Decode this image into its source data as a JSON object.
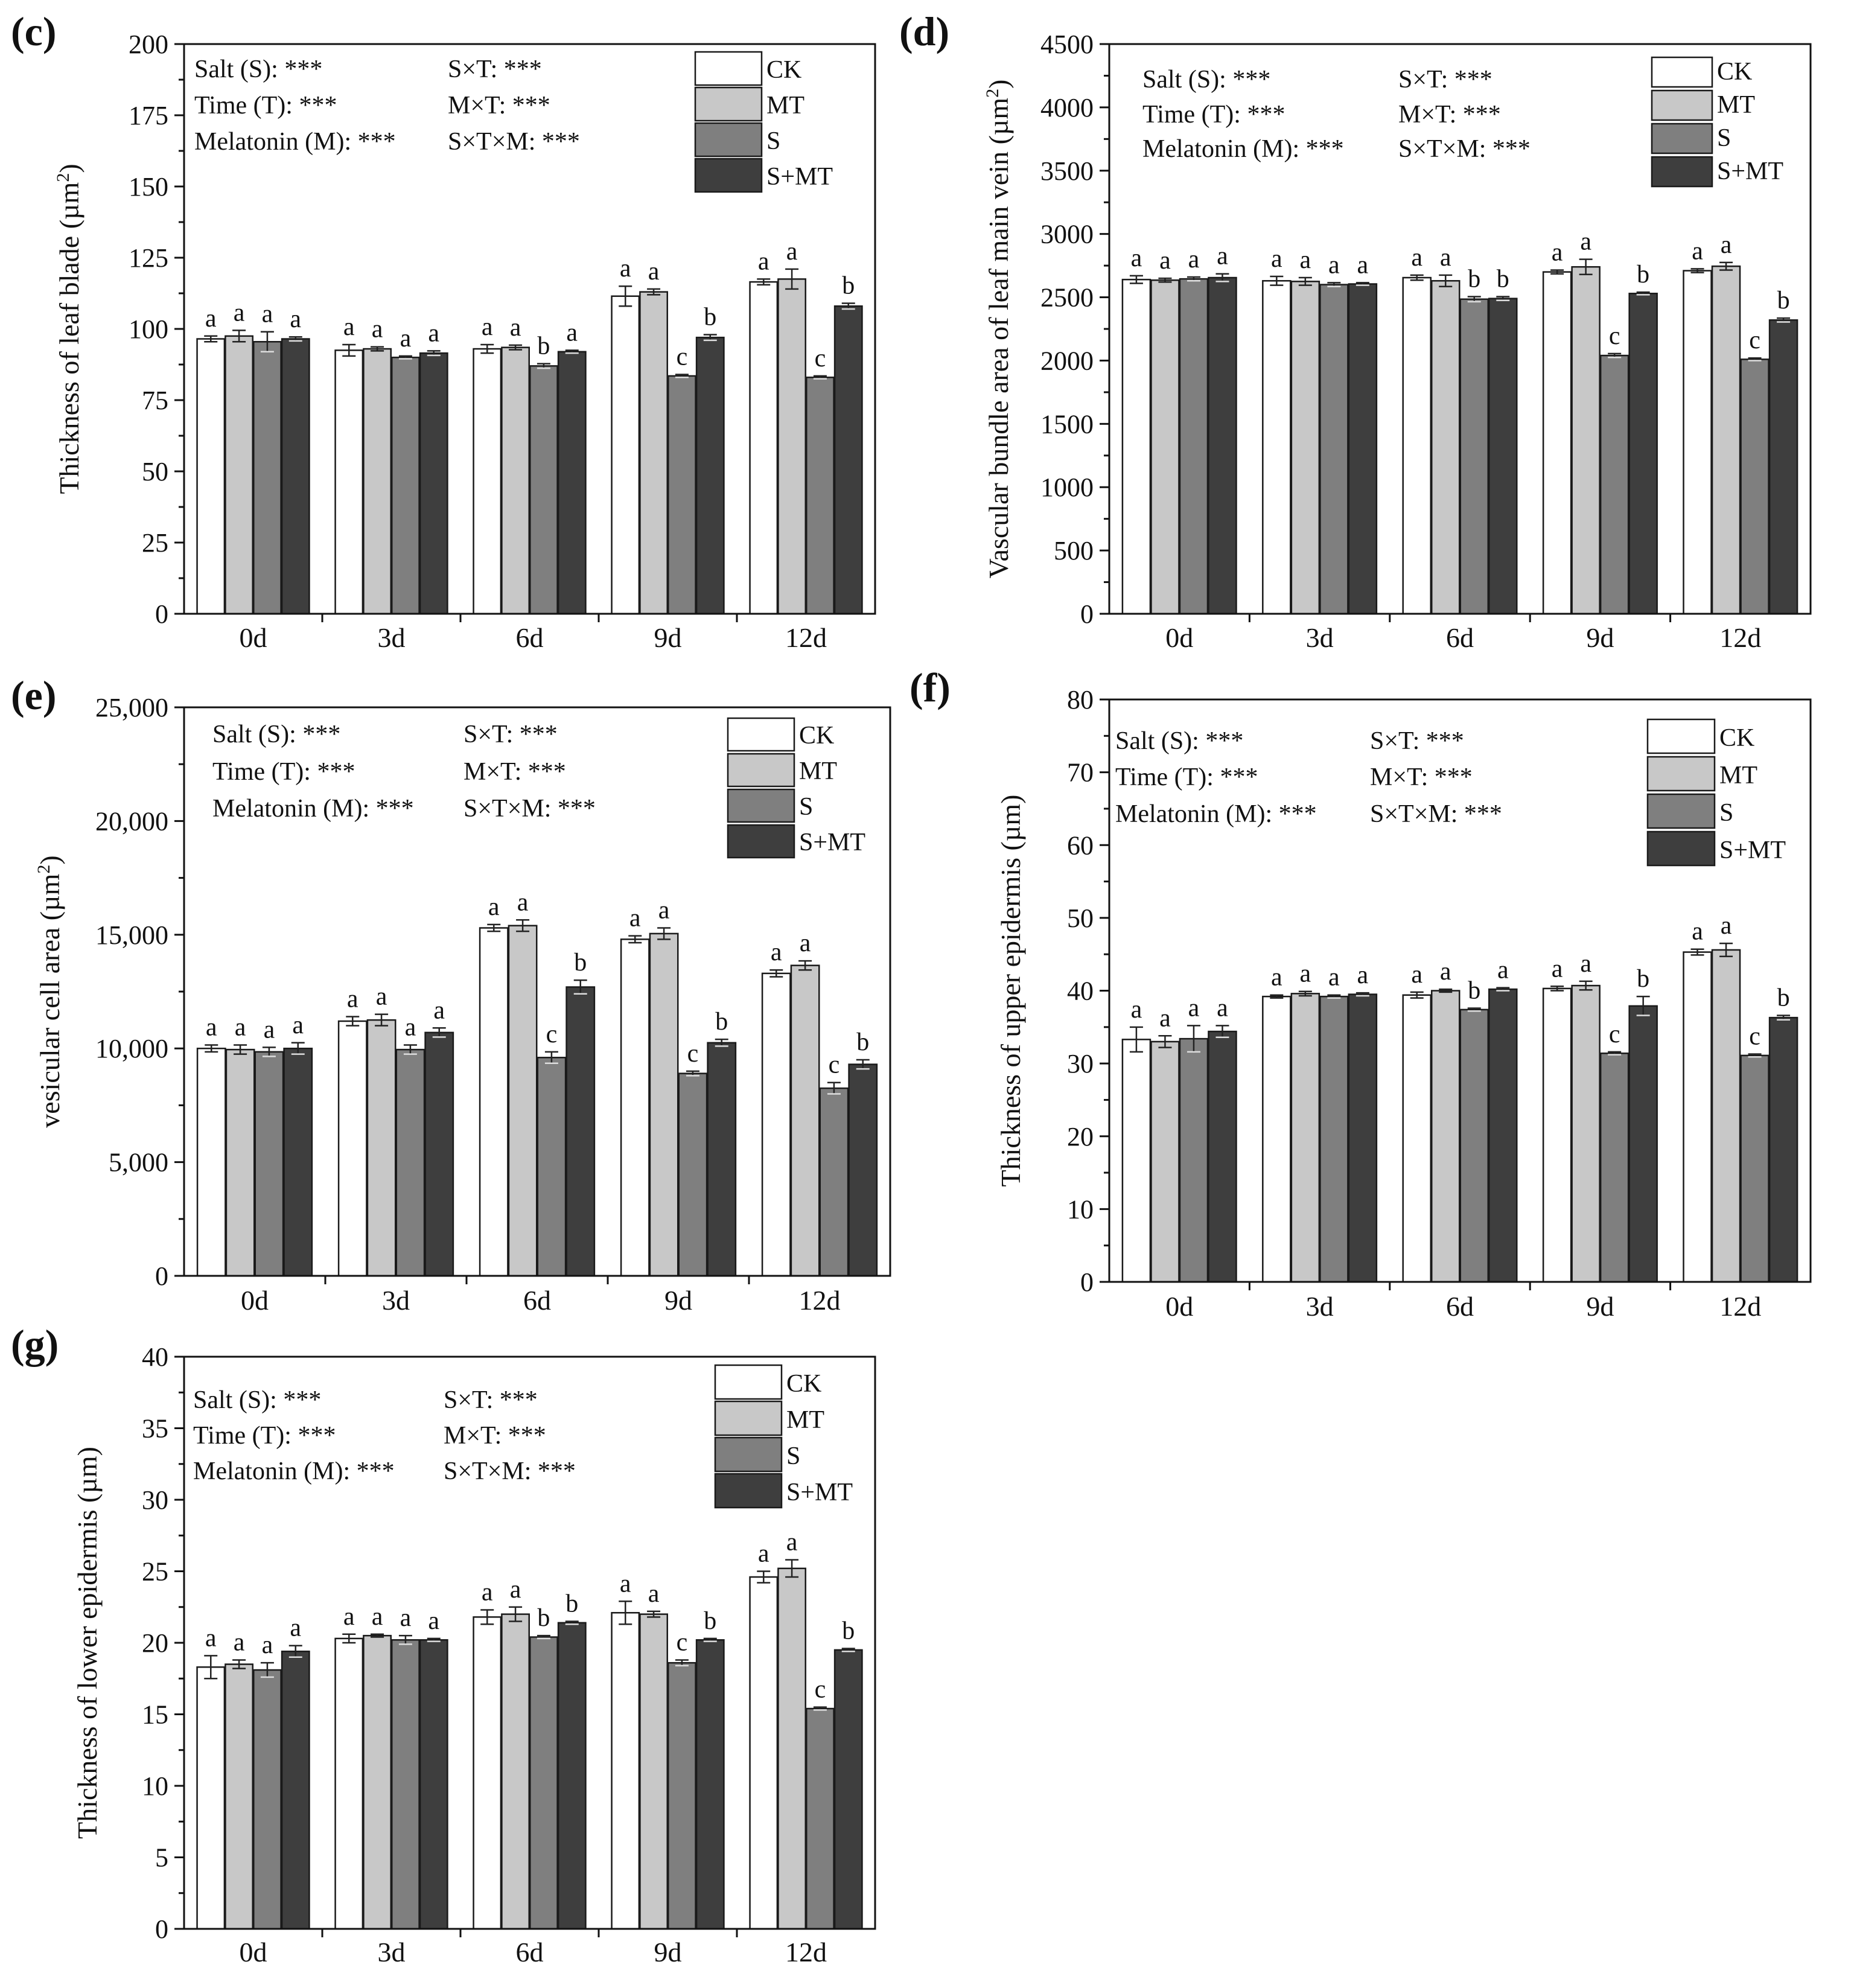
{
  "colors": {
    "CK": "#ffffff",
    "MT": "#c8c8c8",
    "S": "#7f7f7f",
    "S+MT": "#3e3e3e",
    "axis": "#111111"
  },
  "chart_data": [
    {
      "panel": "(c)",
      "type": "bar",
      "ylabel": "Thickness of leaf blade (µm²)",
      "ylabel_main": "Thickness of leaf blade (µm",
      "ylabel_sup": "2",
      "ylabel_end": ")",
      "ylim": [
        0,
        200
      ],
      "yticks": [
        0,
        25,
        50,
        75,
        100,
        125,
        150,
        175,
        200
      ],
      "ytick_labels": [
        "0",
        "25",
        "50",
        "75",
        "100",
        "125",
        "150",
        "175",
        "200"
      ],
      "categories": [
        "0d",
        "3d",
        "6d",
        "9d",
        "12d"
      ],
      "legend": [
        "CK",
        "MT",
        "S",
        "S+MT"
      ],
      "stats": [
        [
          "Salt (S): ***",
          "S×T: ***"
        ],
        [
          "Time (T): ***",
          "M×T: ***"
        ],
        [
          "Melatonin (M): ***",
          "S×T×M: ***"
        ]
      ],
      "series": [
        {
          "name": "CK",
          "values": [
            96.5,
            92.5,
            93,
            111.5,
            116.5
          ],
          "errors": [
            1,
            2,
            1.5,
            3.5,
            1
          ],
          "letters": [
            "a",
            "a",
            "a",
            "a",
            "a"
          ]
        },
        {
          "name": "MT",
          "values": [
            97.5,
            93,
            93.5,
            113,
            117.5
          ],
          "errors": [
            2,
            0.7,
            0.8,
            1,
            3.5
          ],
          "letters": [
            "a",
            "a",
            "a",
            "a",
            "a"
          ]
        },
        {
          "name": "S",
          "values": [
            95.5,
            90,
            87,
            83.5,
            83
          ],
          "errors": [
            3.5,
            0.5,
            0.8,
            0.5,
            0.5
          ],
          "letters": [
            "a",
            "a",
            "b",
            "c",
            "c"
          ]
        },
        {
          "name": "S+MT",
          "values": [
            96.5,
            91.5,
            92,
            97,
            108
          ],
          "errors": [
            0.7,
            0.8,
            0.5,
            1,
            1
          ],
          "letters": [
            "a",
            "a",
            "a",
            "b",
            "b"
          ]
        }
      ]
    },
    {
      "panel": "(d)",
      "type": "bar",
      "ylabel": "Vascular bundle area of leaf main vein (µm²)",
      "ylabel_main": "Vascular bundle area of leaf main vein (µm",
      "ylabel_sup": "2",
      "ylabel_end": ")",
      "ylim": [
        0,
        4500
      ],
      "yticks": [
        0,
        500,
        1000,
        1500,
        2000,
        2500,
        3000,
        3500,
        4000,
        4500
      ],
      "ytick_labels": [
        "0",
        "500",
        "1000",
        "1500",
        "2000",
        "2500",
        "3000",
        "3500",
        "4000",
        "4500"
      ],
      "categories": [
        "0d",
        "3d",
        "6d",
        "9d",
        "12d"
      ],
      "legend": [
        "CK",
        "MT",
        "S",
        "S+MT"
      ],
      "stats": [
        [
          "Salt (S): ***",
          "S×T: ***"
        ],
        [
          "Time (T): ***",
          "M×T: ***"
        ],
        [
          "Melatonin (M): ***",
          "S×T×M: ***"
        ]
      ],
      "series": [
        {
          "name": "CK",
          "values": [
            2640,
            2630,
            2655,
            2700,
            2710
          ],
          "errors": [
            30,
            35,
            20,
            15,
            15
          ],
          "letters": [
            "a",
            "a",
            "a",
            "a",
            "a"
          ]
        },
        {
          "name": "MT",
          "values": [
            2635,
            2625,
            2630,
            2740,
            2745
          ],
          "errors": [
            15,
            30,
            45,
            60,
            30
          ],
          "letters": [
            "a",
            "a",
            "a",
            "a",
            "a"
          ]
        },
        {
          "name": "S",
          "values": [
            2645,
            2600,
            2485,
            2040,
            2010
          ],
          "errors": [
            15,
            15,
            20,
            15,
            10
          ],
          "letters": [
            "a",
            "a",
            "b",
            "c",
            "c"
          ]
        },
        {
          "name": "S+MT",
          "values": [
            2655,
            2605,
            2490,
            2530,
            2320
          ],
          "errors": [
            30,
            10,
            15,
            10,
            15
          ],
          "letters": [
            "a",
            "a",
            "b",
            "b",
            "b"
          ]
        }
      ]
    },
    {
      "panel": "(e)",
      "type": "bar",
      "ylabel": "vesicular cell area (µm²)",
      "ylabel_main": "vesicular cell area (µm",
      "ylabel_sup": "2",
      "ylabel_end": ")",
      "ylim": [
        0,
        25000
      ],
      "yticks": [
        0,
        5000,
        10000,
        15000,
        20000,
        25000
      ],
      "ytick_labels": [
        "0",
        "5,000",
        "10,000",
        "15,000",
        "20,000",
        "25,000"
      ],
      "categories": [
        "0d",
        "3d",
        "6d",
        "9d",
        "12d"
      ],
      "legend": [
        "CK",
        "MT",
        "S",
        "S+MT"
      ],
      "stats": [
        [
          "Salt (S): ***",
          "S×T: ***"
        ],
        [
          "Time (T): ***",
          "M×T: ***"
        ],
        [
          "Melatonin (M): ***",
          "S×T×M: ***"
        ]
      ],
      "series": [
        {
          "name": "CK",
          "values": [
            10000,
            11200,
            15300,
            14800,
            13300
          ],
          "errors": [
            150,
            200,
            150,
            150,
            150
          ],
          "letters": [
            "a",
            "a",
            "a",
            "a",
            "a"
          ]
        },
        {
          "name": "MT",
          "values": [
            9950,
            11250,
            15400,
            15050,
            13650
          ],
          "errors": [
            200,
            250,
            250,
            250,
            200
          ],
          "letters": [
            "a",
            "a",
            "a",
            "a",
            "a"
          ]
        },
        {
          "name": "S",
          "values": [
            9850,
            9950,
            9600,
            8900,
            8250
          ],
          "errors": [
            200,
            200,
            250,
            100,
            250
          ],
          "letters": [
            "a",
            "a",
            "c",
            "c",
            "c"
          ]
        },
        {
          "name": "S+MT",
          "values": [
            10000,
            10700,
            12700,
            10250,
            9300
          ],
          "errors": [
            250,
            200,
            300,
            150,
            200
          ],
          "letters": [
            "a",
            "a",
            "b",
            "b",
            "b"
          ]
        }
      ]
    },
    {
      "panel": "(f)",
      "type": "bar",
      "ylabel": "Thickness of upper epidermis (µm)",
      "ylabel_main": "Thickness of upper epidermis (µm)",
      "ylabel_sup": "",
      "ylabel_end": "",
      "ylim": [
        0,
        80
      ],
      "yticks": [
        0,
        10,
        20,
        30,
        40,
        50,
        60,
        70,
        80
      ],
      "ytick_labels": [
        "0",
        "10",
        "20",
        "30",
        "40",
        "50",
        "60",
        "70",
        "80"
      ],
      "categories": [
        "0d",
        "3d",
        "6d",
        "9d",
        "12d"
      ],
      "legend": [
        "CK",
        "MT",
        "S",
        "S+MT"
      ],
      "stats": [
        [
          "Salt (S): ***",
          "S×T: ***"
        ],
        [
          "Time (T): ***",
          "M×T: ***"
        ],
        [
          "Melatonin (M): ***",
          "S×T×M: ***"
        ]
      ],
      "series": [
        {
          "name": "CK",
          "values": [
            33.3,
            39.2,
            39.4,
            40.3,
            45.3
          ],
          "errors": [
            1.7,
            0.2,
            0.4,
            0.3,
            0.4
          ],
          "letters": [
            "a",
            "a",
            "a",
            "a",
            "a"
          ]
        },
        {
          "name": "MT",
          "values": [
            33.0,
            39.6,
            40.0,
            40.7,
            45.6
          ],
          "errors": [
            0.8,
            0.3,
            0.2,
            0.6,
            0.9
          ],
          "letters": [
            "a",
            "a",
            "a",
            "a",
            "a"
          ]
        },
        {
          "name": "S",
          "values": [
            33.4,
            39.2,
            37.4,
            31.4,
            31.1
          ],
          "errors": [
            1.8,
            0.2,
            0.2,
            0.2,
            0.2
          ],
          "letters": [
            "a",
            "a",
            "b",
            "c",
            "c"
          ]
        },
        {
          "name": "S+MT",
          "values": [
            34.4,
            39.5,
            40.2,
            37.9,
            36.3
          ],
          "errors": [
            0.8,
            0.2,
            0.2,
            1.3,
            0.3
          ],
          "letters": [
            "a",
            "a",
            "a",
            "b",
            "b"
          ]
        }
      ]
    },
    {
      "panel": "(g)",
      "type": "bar",
      "ylabel": "Thickness of lower epidermis (µm)",
      "ylabel_main": "Thickness of lower epidermis (µm)",
      "ylabel_sup": "",
      "ylabel_end": "",
      "ylim": [
        0,
        40
      ],
      "yticks": [
        0,
        5,
        10,
        15,
        20,
        25,
        30,
        35,
        40
      ],
      "ytick_labels": [
        "0",
        "5",
        "10",
        "15",
        "20",
        "25",
        "30",
        "35",
        "40"
      ],
      "categories": [
        "0d",
        "3d",
        "6d",
        "9d",
        "12d"
      ],
      "legend": [
        "CK",
        "MT",
        "S",
        "S+MT"
      ],
      "stats": [
        [
          "Salt (S): ***",
          "S×T: ***"
        ],
        [
          "Time (T): ***",
          "M×T: ***"
        ],
        [
          "Melatonin (M): ***",
          "S×T×M: ***"
        ]
      ],
      "series": [
        {
          "name": "CK",
          "values": [
            18.3,
            20.3,
            21.8,
            22.1,
            24.6
          ],
          "errors": [
            0.8,
            0.3,
            0.5,
            0.8,
            0.4
          ],
          "letters": [
            "a",
            "a",
            "a",
            "a",
            "a"
          ]
        },
        {
          "name": "MT",
          "values": [
            18.5,
            20.5,
            22.0,
            22.0,
            25.2
          ],
          "errors": [
            0.3,
            0.1,
            0.5,
            0.2,
            0.6
          ],
          "letters": [
            "a",
            "a",
            "a",
            "a",
            "a"
          ]
        },
        {
          "name": "S",
          "values": [
            18.1,
            20.2,
            20.4,
            18.6,
            15.4
          ],
          "errors": [
            0.5,
            0.3,
            0.1,
            0.2,
            0.1
          ],
          "letters": [
            "a",
            "a",
            "b",
            "c",
            "c"
          ]
        },
        {
          "name": "S+MT",
          "values": [
            19.4,
            20.2,
            21.4,
            20.2,
            19.5
          ],
          "errors": [
            0.4,
            0.1,
            0.1,
            0.1,
            0.1
          ],
          "letters": [
            "a",
            "a",
            "b",
            "b",
            "b"
          ]
        }
      ]
    }
  ]
}
